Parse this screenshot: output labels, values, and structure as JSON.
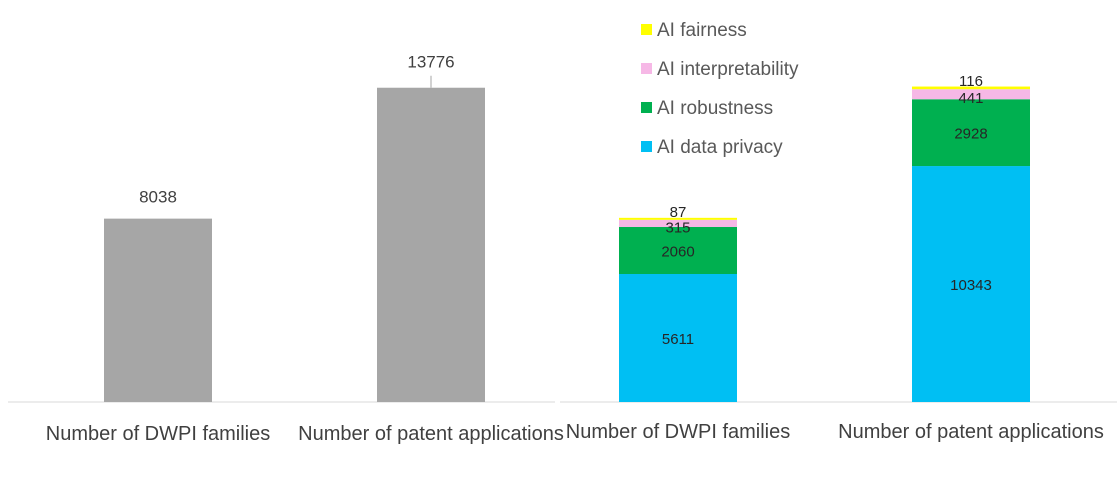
{
  "chart_data": [
    {
      "type": "bar",
      "categories": [
        "Number of DWPI families",
        "Number of patent applications"
      ],
      "values": [
        8038,
        13776
      ],
      "color": "#A6A6A6",
      "title": "",
      "xlabel": "",
      "ylabel": "",
      "ylim": [
        0,
        16000
      ],
      "grid": false,
      "legend": "none"
    },
    {
      "type": "bar",
      "stacked": true,
      "categories": [
        "Number of DWPI families",
        "Number of patent applications"
      ],
      "series": [
        {
          "name": "AI data privacy",
          "values": [
            5611,
            10343
          ],
          "color": "#00BFF3"
        },
        {
          "name": "AI robustness",
          "values": [
            2060,
            2928
          ],
          "color": "#00B050"
        },
        {
          "name": "AI interpretability",
          "values": [
            315,
            441
          ],
          "color": "#F6B8E6"
        },
        {
          "name": "AI fairness",
          "values": [
            87,
            116
          ],
          "color": "#FFFF00"
        }
      ],
      "title": "",
      "xlabel": "",
      "ylabel": "",
      "ylim": [
        0,
        16000
      ],
      "grid": false,
      "legend": "top-right"
    }
  ]
}
